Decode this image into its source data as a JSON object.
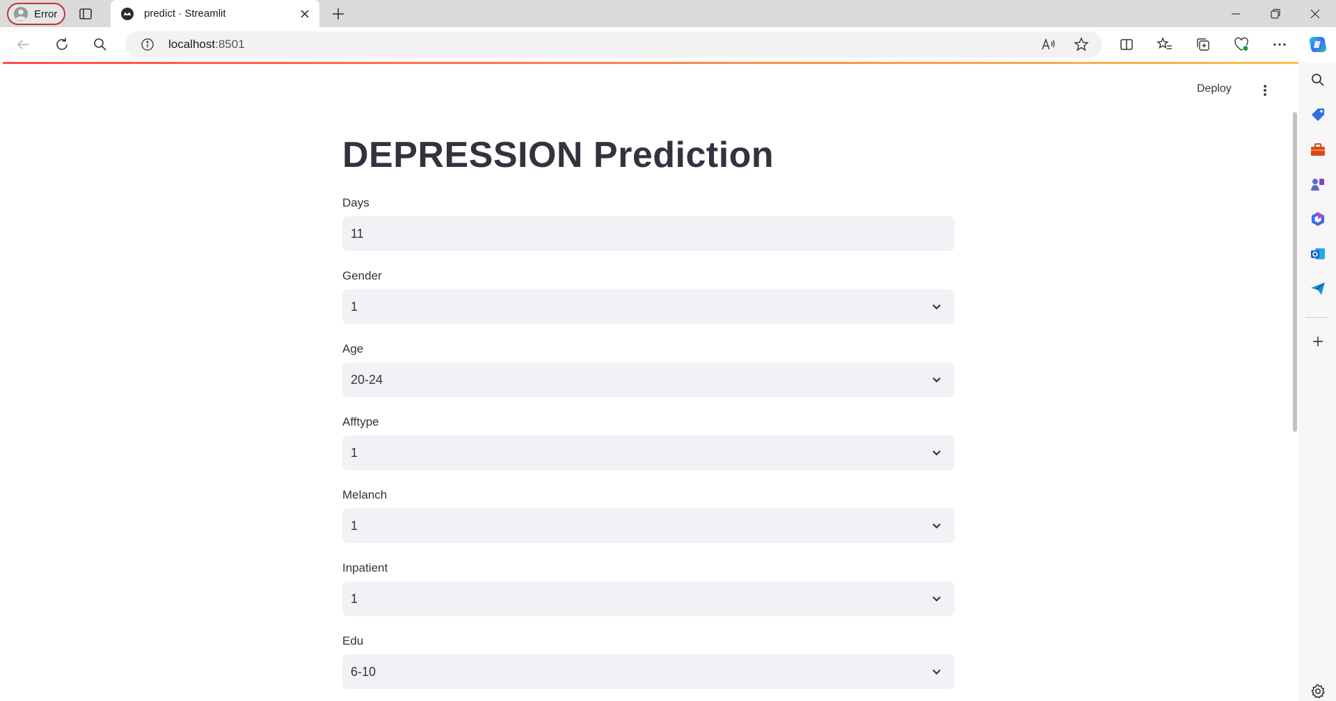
{
  "browser": {
    "profile_label": "Error",
    "tab_title": "predict · Streamlit",
    "url_host": "localhost",
    "url_port": ":8501"
  },
  "app": {
    "deploy_label": "Deploy",
    "title": "DEPRESSION Prediction",
    "fields": [
      {
        "label": "Days",
        "value": "11",
        "type": "number"
      },
      {
        "label": "Gender",
        "value": "1",
        "type": "select"
      },
      {
        "label": "Age",
        "value": "20-24",
        "type": "select"
      },
      {
        "label": "Afftype",
        "value": "1",
        "type": "select"
      },
      {
        "label": "Melanch",
        "value": "1",
        "type": "select"
      },
      {
        "label": "Inpatient",
        "value": "1",
        "type": "select"
      },
      {
        "label": "Edu",
        "value": "6-10",
        "type": "select"
      }
    ]
  },
  "colors": {
    "accent_red": "#ff4b4b",
    "accent_yellow": "#ffbd45",
    "input_bg": "#f0f2f6",
    "text": "#31333f"
  }
}
